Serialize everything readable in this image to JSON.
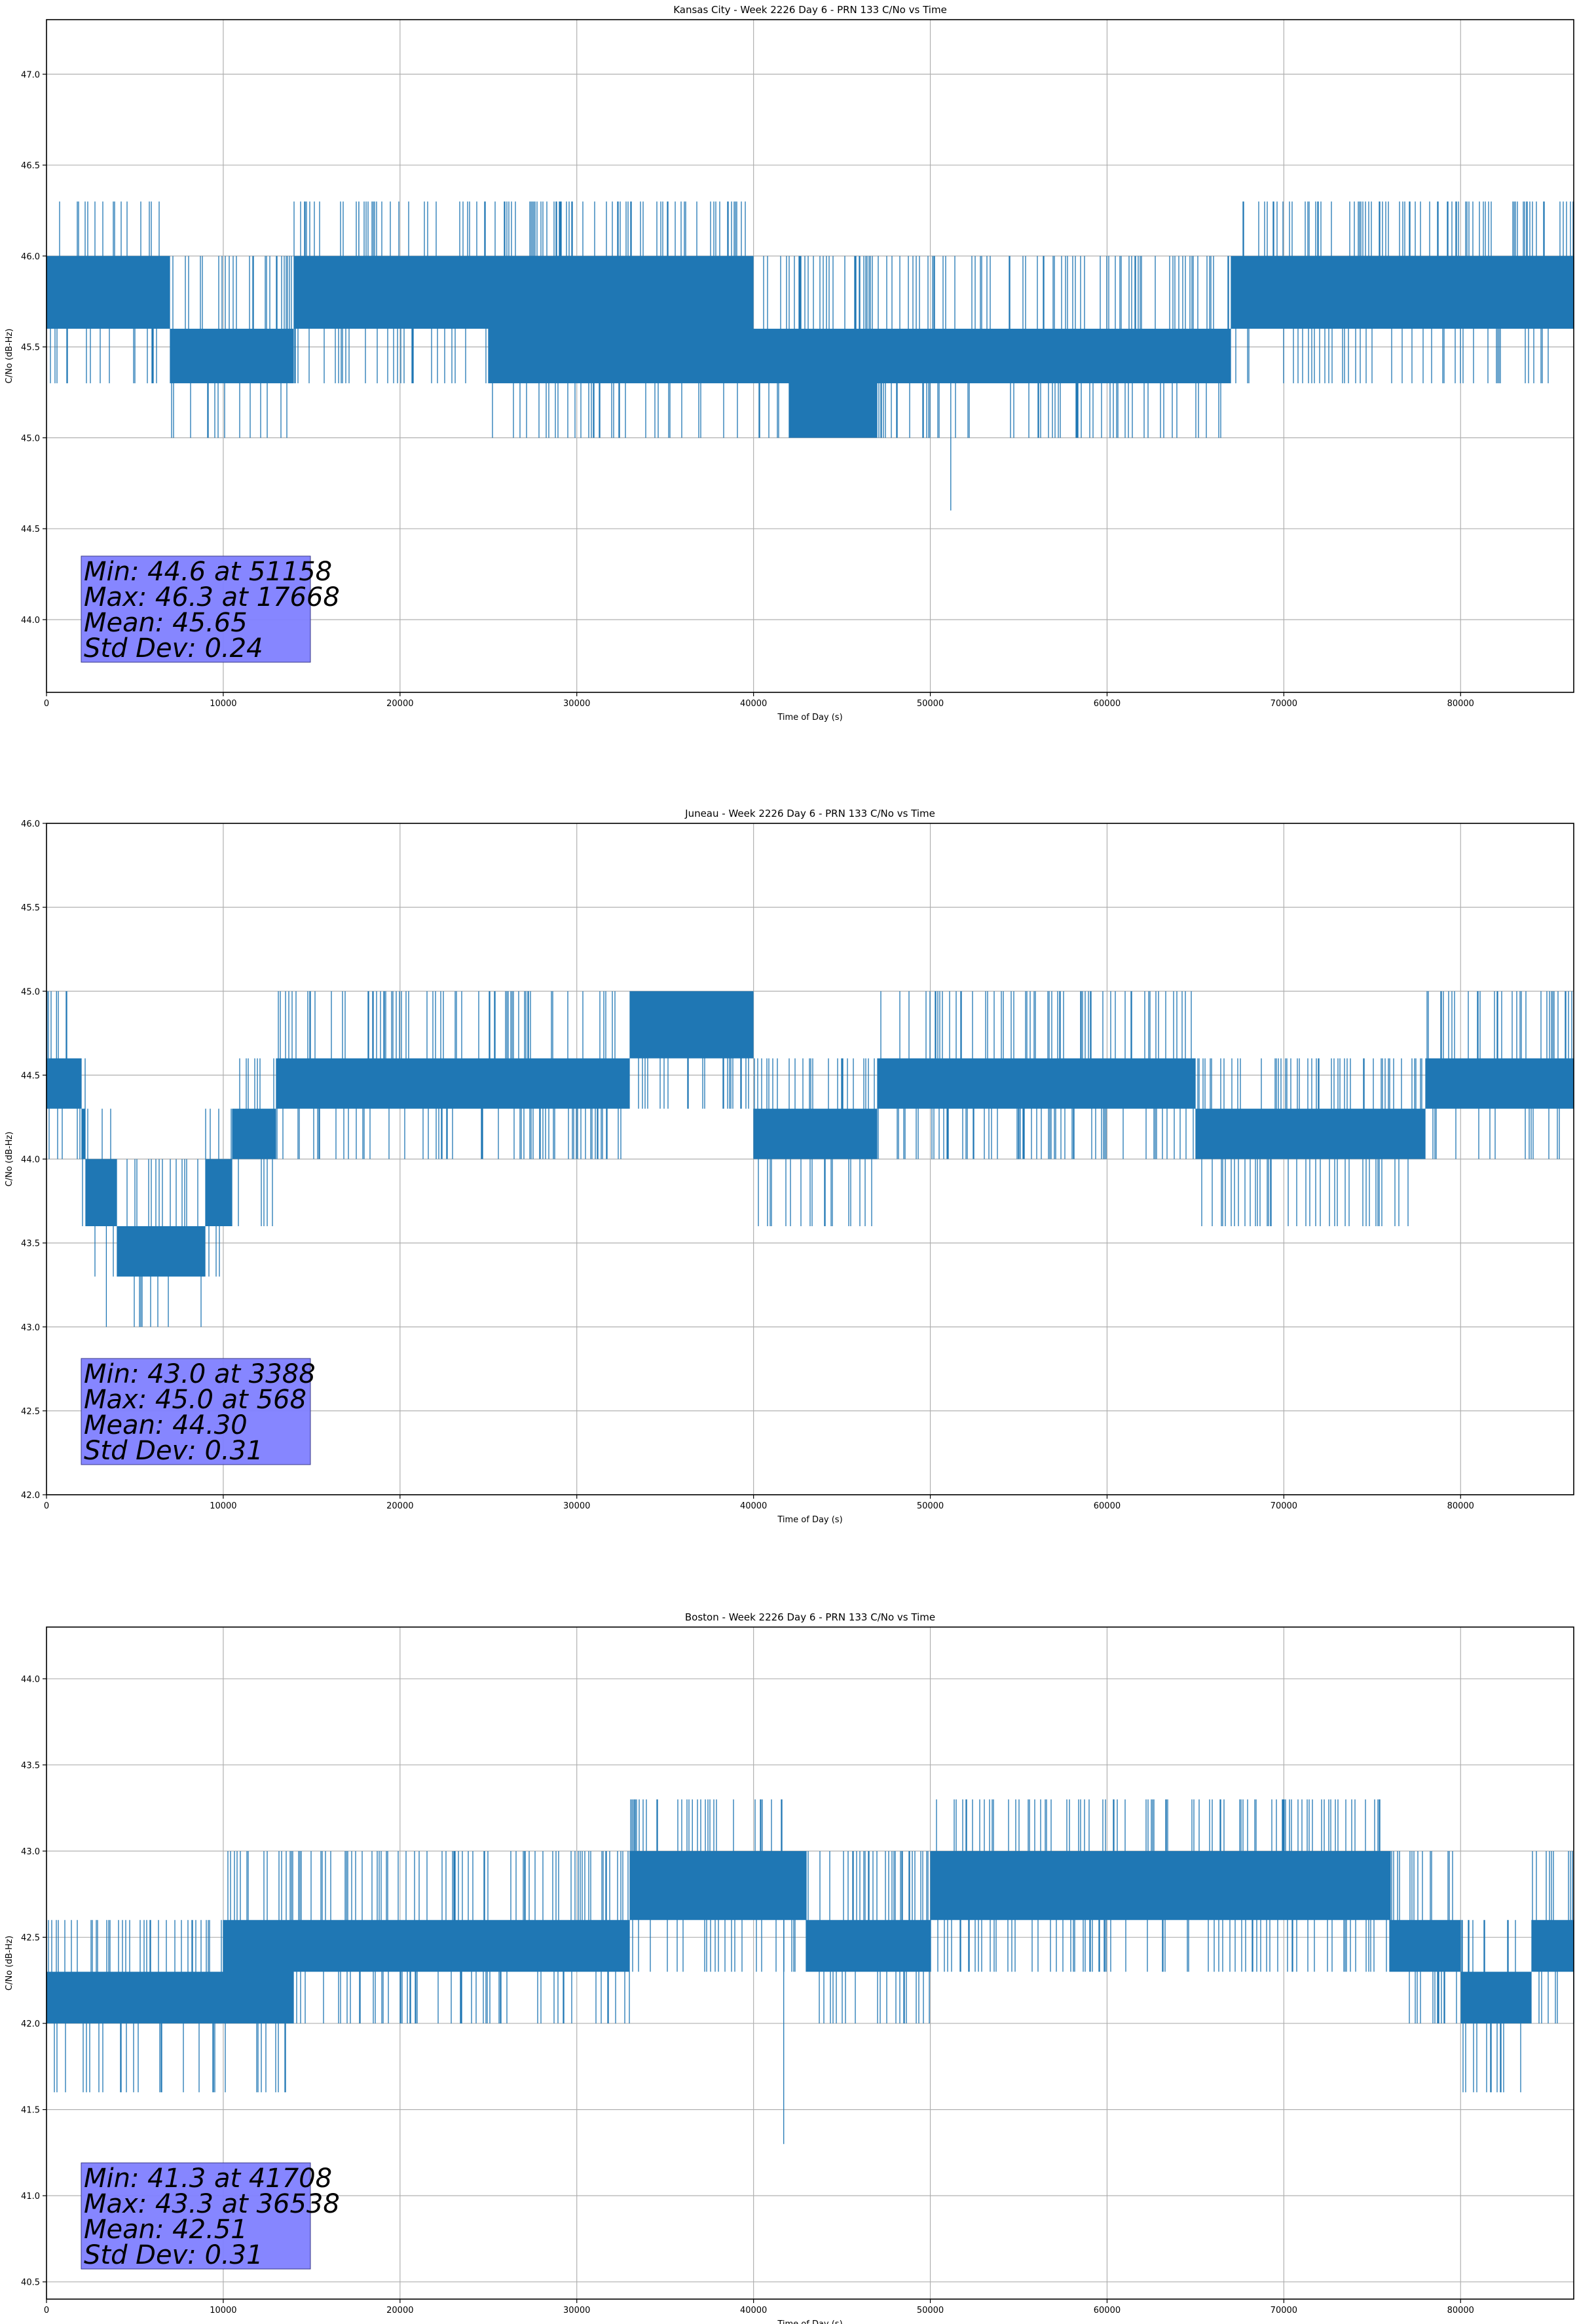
{
  "colors": {
    "line": "#1f77b4",
    "grid": "#b0b0b0",
    "stats_box": "#8080ff"
  },
  "chart_data": [
    {
      "type": "line",
      "title": "Kansas City - Week 2226 Day 6 - PRN 133 C/No vs Time",
      "xlabel": "Time of Day (s)",
      "ylabel": "C/No (dB-Hz)",
      "xlim": [
        0,
        86400
      ],
      "ylim": [
        43.6,
        47.3
      ],
      "xticks": [
        0,
        10000,
        20000,
        30000,
        40000,
        50000,
        60000,
        70000,
        80000
      ],
      "xtick_labels": [
        "0",
        "10000",
        "20000",
        "30000",
        "40000",
        "50000",
        "60000",
        "70000",
        "80000"
      ],
      "yticks": [
        44.0,
        44.5,
        45.0,
        45.5,
        46.0,
        46.5,
        47.0
      ],
      "ytick_labels": [
        "44.0",
        "44.5",
        "45.0",
        "45.5",
        "46.0",
        "46.5",
        "47.0"
      ],
      "grid": true,
      "stats_lines": [
        "Min: 44.6 at 51158",
        "Max: 46.3 at 17668",
        "Mean: 45.65",
        "Std Dev: 0.24"
      ],
      "series": [
        {
          "segments": [
            [
              0,
              45.6,
              46.0
            ],
            [
              7000,
              45.3,
              45.6
            ],
            [
              14000,
              45.6,
              46.0
            ],
            [
              25000,
              45.3,
              46.0
            ],
            [
              40000,
              45.3,
              45.6
            ],
            [
              42000,
              45.0,
              45.6
            ],
            [
              47000,
              45.3,
              45.6
            ],
            [
              60000,
              45.3,
              45.6
            ],
            [
              64000,
              45.3,
              45.6
            ],
            [
              67000,
              45.6,
              46.0
            ],
            [
              86400,
              45.6,
              46.0
            ]
          ],
          "noise_levels": [
            45.0,
            45.3,
            45.6,
            46.0,
            46.3
          ],
          "extremes": [
            [
              17668,
              46.3
            ],
            [
              51158,
              44.6
            ]
          ]
        }
      ]
    },
    {
      "type": "line",
      "title": "Juneau - Week 2226 Day 6 - PRN 133 C/No vs Time",
      "xlabel": "Time of Day (s)",
      "ylabel": "C/No (dB-Hz)",
      "xlim": [
        0,
        86400
      ],
      "ylim": [
        42.0,
        46.0
      ],
      "xticks": [
        0,
        10000,
        20000,
        30000,
        40000,
        50000,
        60000,
        70000,
        80000
      ],
      "xtick_labels": [
        "0",
        "10000",
        "20000",
        "30000",
        "40000",
        "50000",
        "60000",
        "70000",
        "80000"
      ],
      "yticks": [
        42.0,
        42.5,
        43.0,
        43.5,
        44.0,
        44.5,
        45.0,
        45.5,
        46.0
      ],
      "ytick_labels": [
        "42.0",
        "42.5",
        "43.0",
        "43.5",
        "44.0",
        "44.5",
        "45.0",
        "45.5",
        "46.0"
      ],
      "grid": true,
      "stats_lines": [
        "Min: 43.0 at 3388",
        "Max: 45.0 at 568",
        "Mean: 44.30",
        "Std Dev: 0.31"
      ],
      "series": [
        {
          "segments": [
            [
              0,
              44.3,
              44.6
            ],
            [
              2000,
              44.0,
              44.3
            ],
            [
              2200,
              43.6,
              44.0
            ],
            [
              4000,
              43.3,
              43.6
            ],
            [
              9000,
              43.6,
              44.0
            ],
            [
              10500,
              44.0,
              44.3
            ],
            [
              13000,
              44.3,
              44.6
            ],
            [
              25500,
              44.3,
              44.6
            ],
            [
              27000,
              44.3,
              44.6
            ],
            [
              33000,
              44.6,
              45.0
            ],
            [
              40000,
              44.0,
              44.3
            ],
            [
              47000,
              44.3,
              44.6
            ],
            [
              65000,
              44.0,
              44.3
            ],
            [
              78000,
              44.3,
              44.6
            ],
            [
              86400,
              44.3,
              44.6
            ]
          ],
          "noise_levels": [
            43.0,
            43.3,
            43.6,
            44.0,
            44.3,
            44.6,
            45.0
          ],
          "extremes": [
            [
              568,
              45.0
            ],
            [
              3388,
              43.0
            ]
          ]
        }
      ]
    },
    {
      "type": "line",
      "title": "Boston - Week 2226 Day 6 - PRN 133 C/No vs Time",
      "xlabel": "Time of Day (s)",
      "ylabel": "C/No (dB-Hz)",
      "xlim": [
        0,
        86400
      ],
      "ylim": [
        40.4,
        44.3
      ],
      "xticks": [
        0,
        10000,
        20000,
        30000,
        40000,
        50000,
        60000,
        70000,
        80000
      ],
      "xtick_labels": [
        "0",
        "10000",
        "20000",
        "30000",
        "40000",
        "50000",
        "60000",
        "70000",
        "80000"
      ],
      "yticks": [
        40.5,
        41.0,
        41.5,
        42.0,
        42.5,
        43.0,
        43.5,
        44.0
      ],
      "ytick_labels": [
        "40.5",
        "41.0",
        "41.5",
        "42.0",
        "42.5",
        "43.0",
        "43.5",
        "44.0"
      ],
      "grid": true,
      "stats_lines": [
        "Min: 41.3 at 41708",
        "Max: 43.3 at 36538",
        "Mean: 42.51",
        "Std Dev: 0.31"
      ],
      "series": [
        {
          "segments": [
            [
              0,
              42.0,
              42.3
            ],
            [
              10000,
              42.0,
              42.6
            ],
            [
              14000,
              42.3,
              42.6
            ],
            [
              33000,
              42.6,
              43.0
            ],
            [
              43000,
              42.3,
              42.6
            ],
            [
              50000,
              42.6,
              43.0
            ],
            [
              70000,
              42.6,
              43.0
            ],
            [
              76000,
              42.3,
              42.6
            ],
            [
              80000,
              42.0,
              42.3
            ],
            [
              84000,
              42.3,
              42.6
            ],
            [
              86400,
              42.3,
              42.6
            ]
          ],
          "noise_levels": [
            41.6,
            42.0,
            42.3,
            42.6,
            43.0,
            43.3
          ],
          "extremes": [
            [
              36538,
              43.3
            ],
            [
              41708,
              41.3
            ]
          ]
        }
      ]
    }
  ]
}
